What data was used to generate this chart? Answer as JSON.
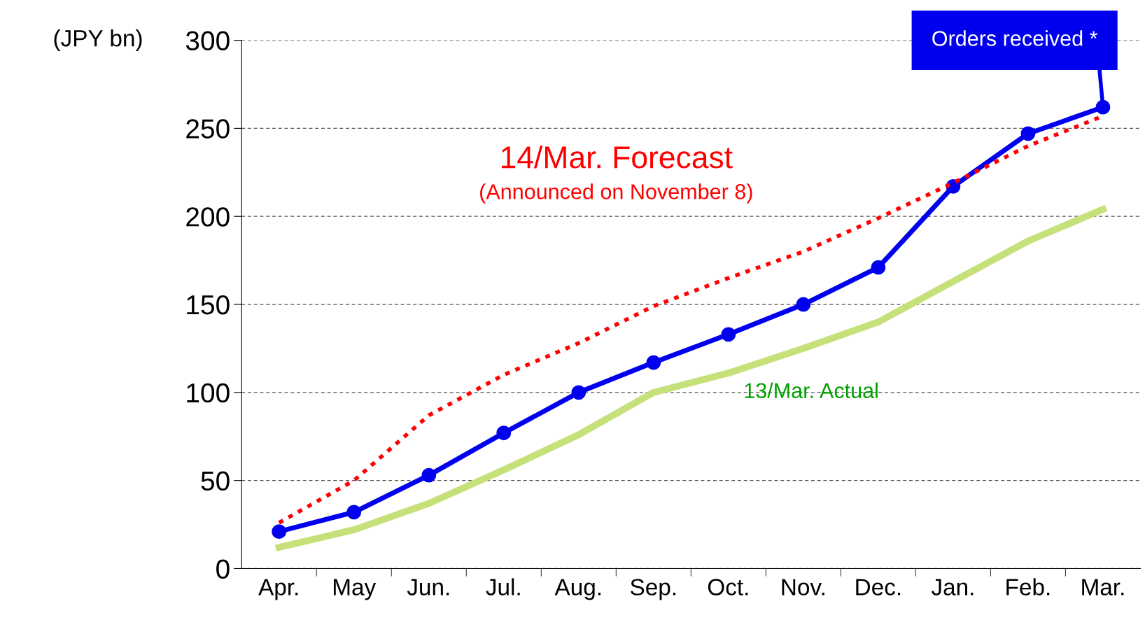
{
  "chart_data": {
    "type": "line",
    "ylabel": "(JPY bn)",
    "categories": [
      "Apr.",
      "May",
      "Jun.",
      "Jul.",
      "Aug.",
      "Sep.",
      "Oct.",
      "Nov.",
      "Dec.",
      "Jan.",
      "Feb.",
      "Mar."
    ],
    "series": [
      {
        "name": "13/Mar. Actual",
        "color": "#c6e07a",
        "line_style": "solid",
        "marker": "none",
        "values": [
          12,
          22,
          37,
          56,
          76,
          100,
          111,
          125,
          140,
          163,
          186,
          204
        ]
      },
      {
        "name": "14/Mar. Forecast",
        "color": "#ff0000",
        "line_style": "dotted",
        "marker": "none",
        "values": [
          26,
          50,
          87,
          110,
          128,
          149,
          165,
          180,
          199,
          219,
          240,
          257
        ]
      },
      {
        "name": "Orders received *",
        "color": "#0000ee",
        "line_style": "solid",
        "marker": "circle",
        "values": [
          21,
          32,
          53,
          77,
          100,
          117,
          133,
          150,
          171,
          217,
          247,
          262
        ]
      }
    ],
    "annotations": [
      "(Announced on November 8)"
    ],
    "ylim": [
      0,
      300
    ],
    "yticks": [
      0,
      50,
      100,
      150,
      200,
      250,
      300
    ],
    "grid": "y"
  }
}
